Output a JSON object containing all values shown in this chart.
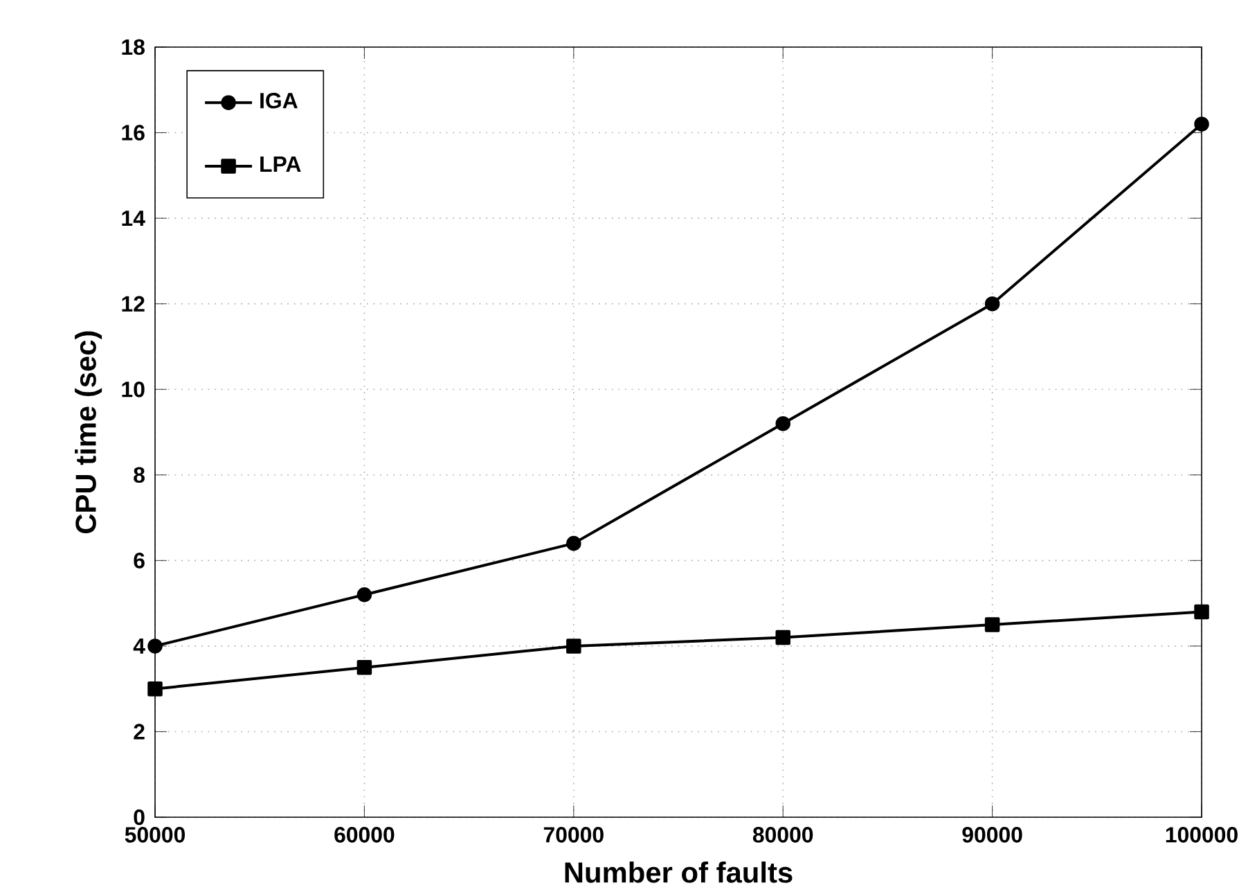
{
  "chart_data": {
    "type": "line",
    "xlabel": "Number of faults",
    "ylabel": "CPU time (sec)",
    "x": [
      50000,
      60000,
      70000,
      80000,
      90000,
      100000
    ],
    "series": [
      {
        "name": "IGA",
        "color": "#000000",
        "marker": "circle",
        "values": [
          4.0,
          5.2,
          6.4,
          9.2,
          12.0,
          16.2
        ]
      },
      {
        "name": "LPA",
        "color": "#000000",
        "marker": "square",
        "values": [
          3.0,
          3.5,
          4.0,
          4.2,
          4.5,
          4.8
        ]
      }
    ],
    "xlim": [
      50000,
      100000
    ],
    "xticks": [
      50000,
      60000,
      70000,
      80000,
      90000,
      100000
    ],
    "ylim": [
      0,
      18
    ],
    "yticks": [
      0,
      2,
      4,
      6,
      8,
      10,
      12,
      14,
      16,
      18
    ],
    "grid": true,
    "legend": "top left",
    "line_style": "solid"
  }
}
